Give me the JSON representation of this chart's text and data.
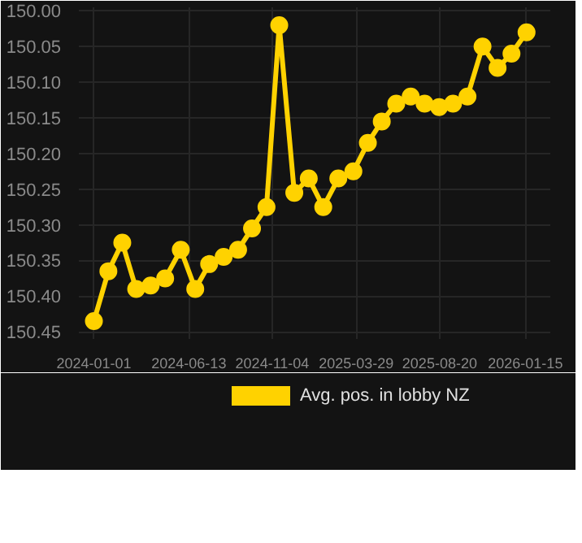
{
  "chart_data": {
    "type": "line",
    "x": [
      "2024-01-01",
      "2024-01-26",
      "2024-02-19",
      "2024-03-14",
      "2024-04-08",
      "2024-05-03",
      "2024-05-30",
      "2024-06-24",
      "2024-07-18",
      "2024-08-12",
      "2024-09-06",
      "2024-09-30",
      "2024-10-25",
      "2024-11-16",
      "2024-12-12",
      "2025-01-06",
      "2025-01-31",
      "2025-02-26",
      "2025-03-24",
      "2025-04-18",
      "2025-05-12",
      "2025-06-06",
      "2025-07-01",
      "2025-07-25",
      "2025-08-19",
      "2025-09-12",
      "2025-10-07",
      "2025-11-02",
      "2025-11-28",
      "2025-12-22",
      "2026-01-17"
    ],
    "series": [
      {
        "name": "Avg. pos. in lobby NZ",
        "color": "#ffd200",
        "values": [
          150.435,
          150.365,
          150.325,
          150.39,
          150.385,
          150.375,
          150.335,
          150.39,
          150.355,
          150.345,
          150.335,
          150.305,
          150.275,
          150.02,
          150.255,
          150.235,
          150.275,
          150.235,
          150.225,
          150.185,
          150.155,
          150.13,
          150.12,
          150.13,
          150.135,
          150.13,
          150.12,
          150.05,
          150.08,
          150.06,
          150.03
        ]
      }
    ],
    "xlim": [
      "2023-12-06",
      "2026-02-27"
    ],
    "ylim": [
      150.46,
      149.995
    ],
    "xticks": [
      "2024-01-01",
      "2024-06-13",
      "2024-11-04",
      "2025-03-29",
      "2025-08-20",
      "2026-01-15"
    ],
    "yticks": [
      {
        "value": 150.0,
        "label": "150.00"
      },
      {
        "value": 150.05,
        "label": "150.05"
      },
      {
        "value": 150.1,
        "label": "150.10"
      },
      {
        "value": 150.15,
        "label": "150.15"
      },
      {
        "value": 150.2,
        "label": "150.20"
      },
      {
        "value": 150.25,
        "label": "150.25"
      },
      {
        "value": 150.3,
        "label": "150.30"
      },
      {
        "value": 150.35,
        "label": "150.35"
      },
      {
        "value": 150.4,
        "label": "150.40"
      },
      {
        "value": 150.45,
        "label": "150.45"
      }
    ],
    "grid": true,
    "legend": "bottom",
    "marker": "circle",
    "line_style": "solid"
  }
}
